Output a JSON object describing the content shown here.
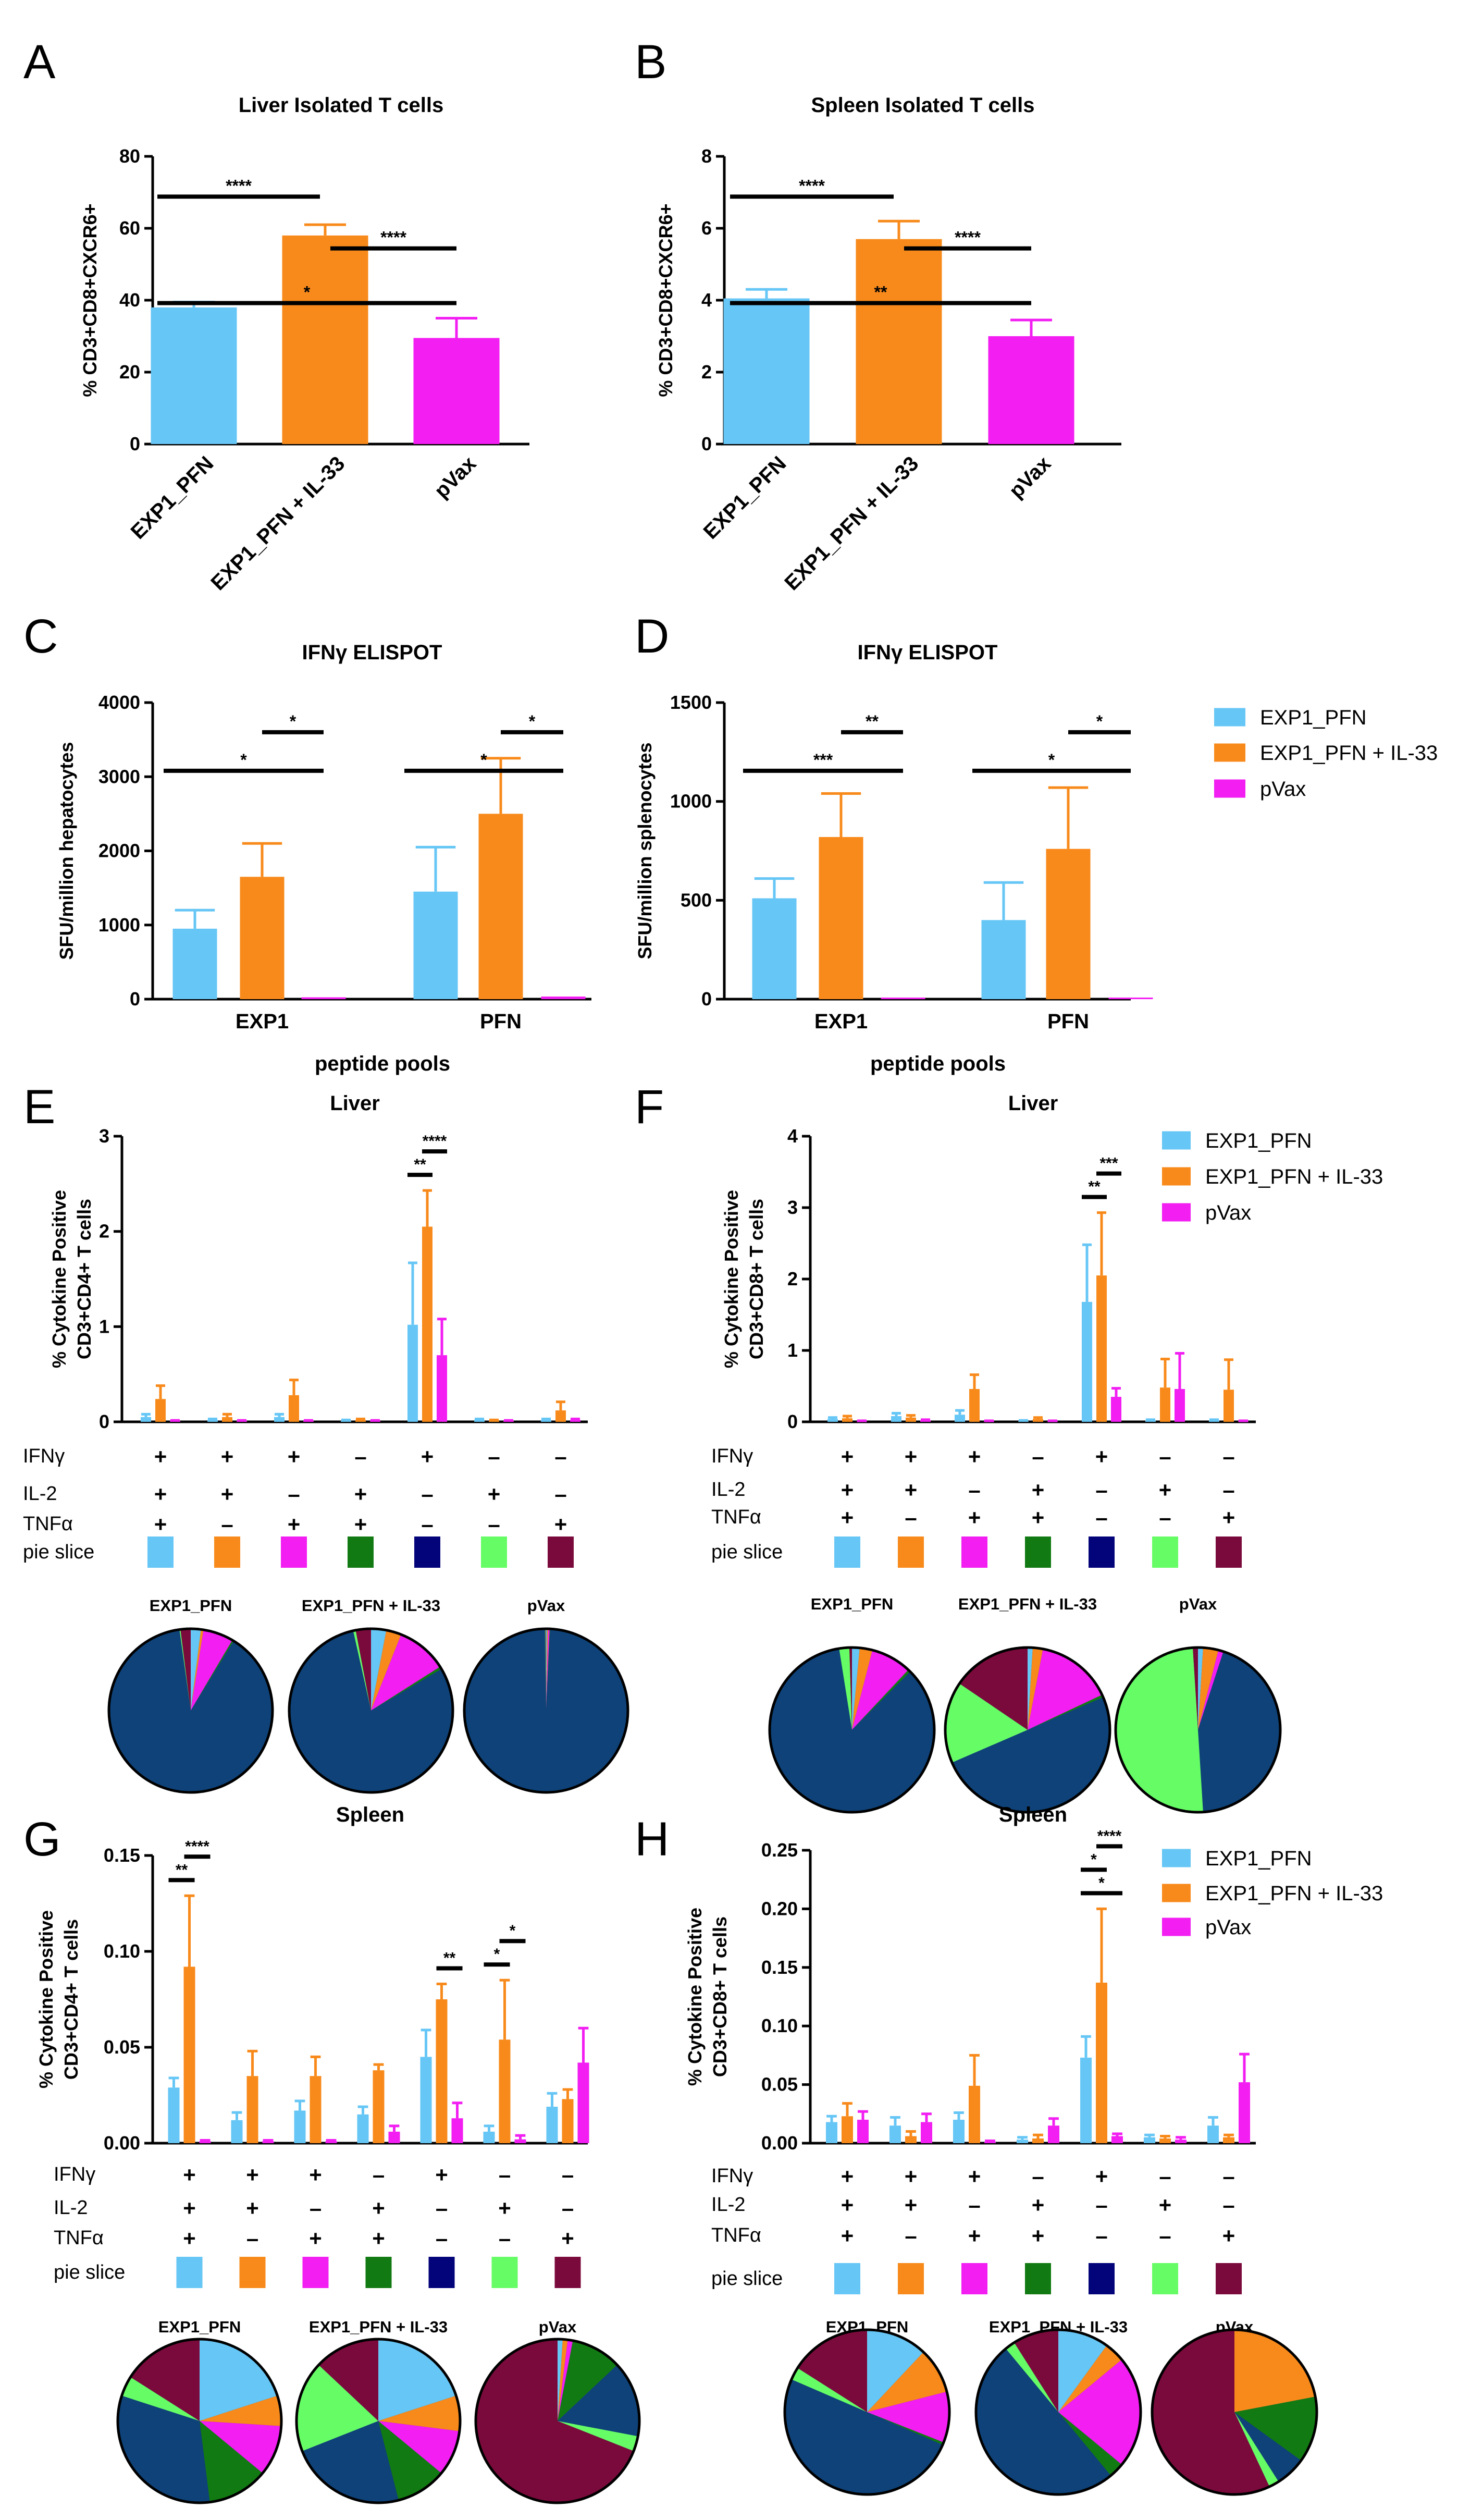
{
  "colors": {
    "EXP1_PFN": "#66c6f5",
    "EXP1_PFN + IL-33": "#f88a1b",
    "pVax": "#f21ef2",
    "slices": [
      "#66c6f5",
      "#f88a1b",
      "#f21ef2",
      "#127a12",
      "#03037a",
      "#66fc66",
      "#7b0a3c"
    ],
    "pie_base_blue": "#0e4278"
  },
  "panel_labels": [
    "A",
    "B",
    "C",
    "D",
    "E",
    "F",
    "G",
    "H"
  ],
  "legend": {
    "labels_C": [
      "EXP1_PFN",
      "EXP1_PFN + IL-33",
      "pVax"
    ],
    "labels_F": [
      "EXP1_PFN",
      " EXP1_PFN + IL-33",
      "pVax"
    ],
    "labels_H": [
      "EXP1_PFN",
      "EXP1_PFN + IL-33",
      "pVax"
    ]
  },
  "cytokine_rows": {
    "labels": [
      "IFNγ",
      "IL-2",
      "TNFα",
      "pie slice"
    ],
    "IFNg": [
      "+",
      "+",
      "+",
      "–",
      "+",
      "–",
      "–"
    ],
    "IL2": [
      "+",
      "+",
      "–",
      "+",
      "–",
      "+",
      "–"
    ],
    "TNFa": [
      "+",
      "–",
      "+",
      "+",
      "–",
      "–",
      "+"
    ]
  },
  "pie_titles": {
    "E": [
      "EXP1_PFN",
      "EXP1_PFN + IL-33",
      "pVax"
    ],
    "F": [
      "EXP1_PFN",
      "EXP1_PFN + IL-33",
      "pVax"
    ],
    "G": [
      "EXP1_PFN",
      "EXP1_PFN + IL-33",
      "pVax"
    ],
    "H": [
      "EXP1_PFN",
      "EXP1_PFN + IL-33",
      "pVax"
    ]
  },
  "chart_data": [
    {
      "id": "A",
      "type": "bar",
      "title": "Liver Isolated T cells",
      "ylabel": "% CD3+CD8+CXCR6+",
      "ylim": [
        0,
        80
      ],
      "yticks": [
        0,
        20,
        40,
        60,
        80
      ],
      "categories": [
        "EXP1_PFN",
        "EXP1_PFN + IL-33",
        "pVax"
      ],
      "values": [
        38,
        58,
        29.5
      ],
      "errors": [
        1.5,
        3,
        5.5
      ],
      "significance": [
        {
          "from": 0,
          "to": 1,
          "label": "****"
        },
        {
          "from": 1,
          "to": 2,
          "label": "****"
        },
        {
          "from": 0,
          "to": 2,
          "label": "*"
        }
      ]
    },
    {
      "id": "B",
      "type": "bar",
      "title": "Spleen Isolated T cells",
      "ylabel": "% CD3+CD8+CXCR6+",
      "ylim": [
        0,
        8
      ],
      "yticks": [
        0,
        2,
        4,
        6,
        8
      ],
      "categories": [
        "EXP1_PFN",
        "EXP1_PFN + IL-33",
        "pVax"
      ],
      "values": [
        4.05,
        5.7,
        3.0
      ],
      "errors": [
        0.25,
        0.5,
        0.45
      ],
      "significance": [
        {
          "from": 0,
          "to": 1,
          "label": "****"
        },
        {
          "from": 1,
          "to": 2,
          "label": "****"
        },
        {
          "from": 0,
          "to": 2,
          "label": "**"
        }
      ]
    },
    {
      "id": "C",
      "type": "bar",
      "title": "IFNγ ELISPOT",
      "ylabel": "SFU/million hepatocytes",
      "xlabel": "peptide pools",
      "ylim": [
        0,
        4000
      ],
      "yticks": [
        0,
        1000,
        2000,
        3000,
        4000
      ],
      "categories": [
        "EXP1",
        "PFN"
      ],
      "series": [
        {
          "name": "EXP1_PFN",
          "values": [
            950,
            1450
          ],
          "errors": [
            250,
            600
          ]
        },
        {
          "name": "EXP1_PFN + IL-33",
          "values": [
            1650,
            2500
          ],
          "errors": [
            450,
            750
          ]
        },
        {
          "name": "pVax",
          "values": [
            25,
            35
          ],
          "errors": [
            0,
            0
          ]
        }
      ],
      "significance": [
        {
          "group": 0,
          "from": 1,
          "to": 2,
          "label": "*"
        },
        {
          "group": 0,
          "from": 0,
          "to": 2,
          "label": "*"
        },
        {
          "group": 1,
          "from": 1,
          "to": 2,
          "label": "*"
        },
        {
          "group": 1,
          "from": 0,
          "to": 2,
          "label": "*"
        }
      ]
    },
    {
      "id": "D",
      "type": "bar",
      "title": "IFNγ ELISPOT",
      "ylabel": "SFU/million splenocytes",
      "xlabel": "peptide pools",
      "ylim": [
        0,
        1500
      ],
      "yticks": [
        0,
        500,
        1000,
        1500
      ],
      "categories": [
        "EXP1",
        "PFN"
      ],
      "series": [
        {
          "name": "EXP1_PFN",
          "values": [
            510,
            400
          ],
          "errors": [
            100,
            190
          ]
        },
        {
          "name": "EXP1_PFN + IL-33",
          "values": [
            820,
            760
          ],
          "errors": [
            220,
            310
          ]
        },
        {
          "name": "pVax",
          "values": [
            8,
            8
          ],
          "errors": [
            0,
            0
          ]
        }
      ],
      "significance": [
        {
          "group": 0,
          "from": 1,
          "to": 2,
          "label": "**"
        },
        {
          "group": 0,
          "from": 0,
          "to": 2,
          "label": "***"
        },
        {
          "group": 1,
          "from": 1,
          "to": 2,
          "label": "*"
        },
        {
          "group": 1,
          "from": 0,
          "to": 2,
          "label": "*"
        }
      ]
    },
    {
      "id": "E",
      "type": "bar",
      "title": "Liver",
      "ylabel": [
        "% Cytokine Positive",
        "CD3+CD4+ T cells"
      ],
      "ylim": [
        0,
        3
      ],
      "yticks": [
        0,
        1,
        2,
        3
      ],
      "ytick_labels": [
        "0",
        "1",
        "2",
        "3"
      ],
      "series": [
        {
          "name": "EXP1_PFN",
          "values": [
            0.05,
            0.02,
            0.05,
            0.01,
            1.02,
            0.02,
            0.02
          ],
          "errors": [
            0.03,
            0.01,
            0.03,
            0.01,
            0.65,
            0.01,
            0.01
          ]
        },
        {
          "name": "EXP1_PFN + IL-33",
          "values": [
            0.24,
            0.05,
            0.28,
            0.02,
            2.05,
            0.01,
            0.12
          ],
          "errors": [
            0.14,
            0.03,
            0.16,
            0.01,
            0.38,
            0.01,
            0.09
          ]
        },
        {
          "name": "pVax",
          "values": [
            0.01,
            0.01,
            0.01,
            0.01,
            0.7,
            0.01,
            0.02
          ],
          "errors": [
            0.005,
            0.005,
            0.005,
            0.005,
            0.38,
            0.005,
            0.01
          ]
        }
      ],
      "significance": [
        {
          "group": 4,
          "from": 0,
          "to": 1,
          "label": "**"
        },
        {
          "group": 4,
          "from": 1,
          "to": 2,
          "label": "****"
        }
      ],
      "pies": [
        {
          "name": "EXP1_PFN",
          "slices": [
            0.02,
            0.005,
            0.06,
            0.003,
            0.89,
            0.002,
            0.02
          ]
        },
        {
          "name": "EXP1_PFN + IL-33",
          "slices": [
            0.03,
            0.03,
            0.1,
            0.005,
            0.8,
            0.005,
            0.03
          ]
        },
        {
          "name": "pVax",
          "slices": [
            0.002,
            0.002,
            0.003,
            0.001,
            0.99,
            0.001,
            0.001
          ]
        }
      ]
    },
    {
      "id": "F",
      "type": "bar",
      "title": "Liver",
      "ylabel": [
        "% Cytokine Positive",
        "CD3+CD8+ T cells"
      ],
      "ylim": [
        0,
        4
      ],
      "yticks": [
        0,
        1,
        2,
        3,
        4
      ],
      "ytick_labels": [
        "0",
        "1",
        "2",
        "3",
        "4"
      ],
      "series": [
        {
          "name": "EXP1_PFN",
          "values": [
            0.04,
            0.08,
            0.1,
            0.01,
            1.68,
            0.02,
            0.02
          ],
          "errors": [
            0.02,
            0.04,
            0.06,
            0.01,
            0.8,
            0.01,
            0.01
          ]
        },
        {
          "name": "EXP1_PFN + IL-33",
          "values": [
            0.05,
            0.06,
            0.46,
            0.04,
            2.05,
            0.48,
            0.45
          ],
          "errors": [
            0.03,
            0.03,
            0.2,
            0.02,
            0.88,
            0.4,
            0.42
          ]
        },
        {
          "name": "pVax",
          "values": [
            0.01,
            0.02,
            0.01,
            0.01,
            0.35,
            0.46,
            0.01
          ],
          "errors": [
            0.005,
            0.01,
            0.005,
            0.005,
            0.12,
            0.5,
            0.005
          ]
        }
      ],
      "significance": [
        {
          "group": 4,
          "from": 0,
          "to": 1,
          "label": "**"
        },
        {
          "group": 4,
          "from": 1,
          "to": 2,
          "label": "***"
        }
      ],
      "pies": [
        {
          "name": "EXP1_PFN",
          "slices": [
            0.015,
            0.025,
            0.08,
            0.005,
            0.85,
            0.02,
            0.005
          ]
        },
        {
          "name": "EXP1_PFN + IL-33",
          "slices": [
            0.01,
            0.02,
            0.15,
            0.005,
            0.5,
            0.16,
            0.155
          ]
        },
        {
          "name": "pVax",
          "slices": [
            0.01,
            0.03,
            0.01,
            0.0,
            0.44,
            0.5,
            0.01
          ]
        }
      ]
    },
    {
      "id": "G",
      "type": "bar",
      "title": "Spleen",
      "ylabel": [
        "% Cytokine Positive",
        "CD3+CD4+ T cells"
      ],
      "ylim": [
        0,
        0.15
      ],
      "yticks": [
        0,
        0.05,
        0.1,
        0.15
      ],
      "ytick_labels": [
        "0.00",
        "0.05",
        "0.10",
        "0.15"
      ],
      "series": [
        {
          "name": "EXP1_PFN",
          "values": [
            0.029,
            0.012,
            0.017,
            0.015,
            0.045,
            0.006,
            0.019
          ],
          "errors": [
            0.005,
            0.004,
            0.005,
            0.004,
            0.014,
            0.003,
            0.007
          ]
        },
        {
          "name": "EXP1_PFN + IL-33",
          "values": [
            0.092,
            0.035,
            0.035,
            0.038,
            0.075,
            0.054,
            0.023
          ],
          "errors": [
            0.037,
            0.013,
            0.01,
            0.003,
            0.008,
            0.031,
            0.005
          ]
        },
        {
          "name": "pVax",
          "values": [
            0.001,
            0.001,
            0.001,
            0.006,
            0.013,
            0.002,
            0.042
          ],
          "errors": [
            0.0005,
            0.0005,
            0.0005,
            0.003,
            0.008,
            0.002,
            0.018
          ]
        }
      ],
      "significance": [
        {
          "group": 0,
          "from": 0,
          "to": 1,
          "label": "**"
        },
        {
          "group": 0,
          "from": 1,
          "to": 2,
          "label": "****"
        },
        {
          "group": 4,
          "from": 1,
          "to": 2,
          "label": "**"
        },
        {
          "group": 5,
          "from": 0,
          "to": 1,
          "label": "*"
        },
        {
          "group": 5,
          "from": 1,
          "to": 2,
          "label": "*"
        }
      ],
      "pies": [
        {
          "name": "EXP1_PFN",
          "slices": [
            0.2,
            0.06,
            0.1,
            0.12,
            0.32,
            0.04,
            0.16
          ]
        },
        {
          "name": "EXP1_PFN + IL-33",
          "slices": [
            0.2,
            0.07,
            0.09,
            0.1,
            0.23,
            0.18,
            0.13
          ]
        },
        {
          "name": "pVax",
          "slices": [
            0.01,
            0.01,
            0.01,
            0.1,
            0.15,
            0.03,
            0.69
          ]
        }
      ]
    },
    {
      "id": "H",
      "type": "bar",
      "title": "Spleen",
      "ylabel": [
        "% Cytokine Positive",
        "CD3+CD8+ T cells"
      ],
      "ylim": [
        0,
        0.25
      ],
      "yticks": [
        0,
        0.05,
        0.1,
        0.15,
        0.2,
        0.25
      ],
      "ytick_labels": [
        "0.00",
        "0.05",
        "0.10",
        "0.15",
        "0.20",
        "0.25"
      ],
      "series": [
        {
          "name": "EXP1_PFN",
          "values": [
            0.018,
            0.015,
            0.02,
            0.003,
            0.073,
            0.005,
            0.015
          ],
          "errors": [
            0.005,
            0.007,
            0.006,
            0.002,
            0.018,
            0.002,
            0.007
          ]
        },
        {
          "name": "EXP1_PFN + IL-33",
          "values": [
            0.023,
            0.006,
            0.049,
            0.004,
            0.137,
            0.004,
            0.005
          ],
          "errors": [
            0.011,
            0.004,
            0.026,
            0.003,
            0.063,
            0.002,
            0.002
          ]
        },
        {
          "name": "pVax",
          "values": [
            0.02,
            0.018,
            0.001,
            0.015,
            0.006,
            0.003,
            0.052
          ],
          "errors": [
            0.007,
            0.007,
            0.001,
            0.006,
            0.002,
            0.002,
            0.024
          ]
        }
      ],
      "significance": [
        {
          "group": 4,
          "from": 0,
          "to": 2,
          "label": "*"
        },
        {
          "group": 4,
          "from": 0,
          "to": 1,
          "label": "*"
        },
        {
          "group": 4,
          "from": 1,
          "to": 2,
          "label": "****"
        }
      ],
      "pies": [
        {
          "name": "EXP1_PFN",
          "slices": [
            0.12,
            0.09,
            0.1,
            0.005,
            0.5,
            0.025,
            0.16
          ]
        },
        {
          "name": "EXP1_PFN + IL-33",
          "slices": [
            0.1,
            0.04,
            0.22,
            0.03,
            0.5,
            0.02,
            0.09
          ]
        },
        {
          "name": "pVax",
          "slices": [
            0.0,
            0.22,
            0.0,
            0.13,
            0.06,
            0.02,
            0.57
          ]
        }
      ]
    }
  ]
}
